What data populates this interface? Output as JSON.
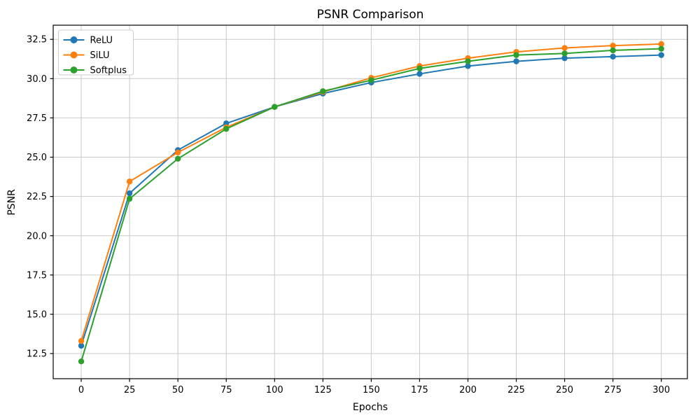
{
  "chart_data": {
    "type": "line",
    "title": "PSNR Comparison",
    "xlabel": "Epochs",
    "ylabel": "PSNR",
    "x": [
      0,
      25,
      50,
      75,
      100,
      125,
      150,
      175,
      200,
      225,
      250,
      275,
      300
    ],
    "series": [
      {
        "name": "ReLU",
        "color": "#1f77b4",
        "values": [
          13.0,
          22.7,
          25.45,
          27.15,
          28.2,
          29.05,
          29.75,
          30.3,
          30.8,
          31.1,
          31.3,
          31.4,
          31.5
        ]
      },
      {
        "name": "SiLU",
        "color": "#ff7f0e",
        "values": [
          13.3,
          23.45,
          25.3,
          26.9,
          28.2,
          29.15,
          30.05,
          30.8,
          31.3,
          31.7,
          31.95,
          32.1,
          32.2
        ]
      },
      {
        "name": "Softplus",
        "color": "#2ca02c",
        "values": [
          12.0,
          22.35,
          24.9,
          26.8,
          28.2,
          29.2,
          29.9,
          30.65,
          31.1,
          31.5,
          31.6,
          31.8,
          31.9
        ]
      }
    ],
    "x_ticks": [
      0,
      25,
      50,
      75,
      100,
      125,
      150,
      175,
      200,
      225,
      250,
      275,
      300
    ],
    "y_ticks": [
      12.5,
      15.0,
      17.5,
      20.0,
      22.5,
      25.0,
      27.5,
      30.0,
      32.5
    ],
    "xlim": [
      -14.5,
      313.5
    ],
    "ylim": [
      10.9,
      33.4
    ],
    "grid": true,
    "legend_position": "upper left",
    "marker": "o",
    "colors": {
      "grid": "#c9c9c9",
      "spine": "#000000",
      "text": "#000000",
      "background": "#ffffff",
      "legend_border": "#cccccc",
      "legend_bg": "#ffffff"
    }
  }
}
